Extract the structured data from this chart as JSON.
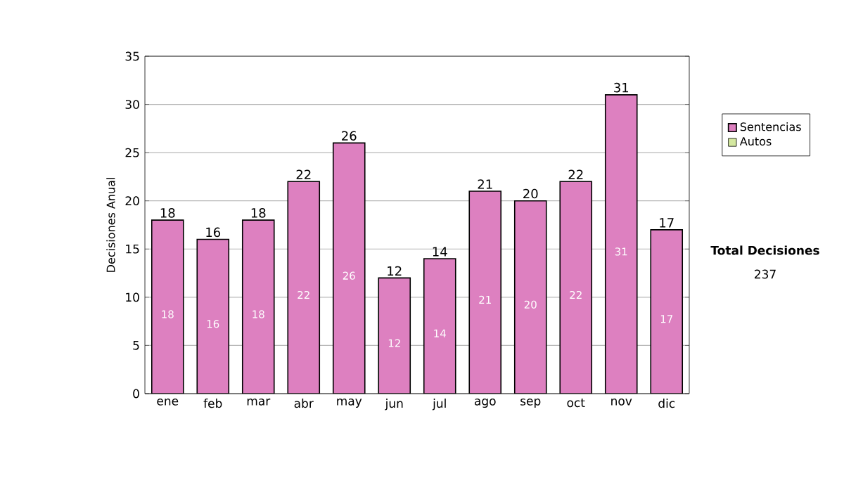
{
  "chart_data": {
    "type": "bar",
    "ylabel": "Decisiones Anual",
    "categories": [
      "ene",
      "feb",
      "mar",
      "abr",
      "may",
      "jun",
      "jul",
      "ago",
      "sep",
      "oct",
      "nov",
      "dic"
    ],
    "series": [
      {
        "name": "Sentencias",
        "color": "#dd80c0",
        "values": [
          18,
          16,
          18,
          22,
          26,
          12,
          14,
          21,
          20,
          22,
          31,
          17
        ]
      },
      {
        "name": "Autos",
        "color": "#d4e8a0",
        "values": [
          null,
          null,
          null,
          null,
          null,
          null,
          null,
          null,
          null,
          null,
          null,
          null
        ]
      }
    ],
    "stacked": true,
    "data_labels": true,
    "totals": [
      "18",
      "16",
      "18",
      "22",
      "26",
      "12",
      "14",
      "21",
      "20",
      "22",
      "31",
      "17"
    ],
    "ylim": [
      0,
      35
    ],
    "yticks": [
      0,
      5,
      10,
      15,
      20,
      25,
      30,
      35
    ],
    "grid": "y",
    "legend": "right",
    "annotations": [
      "**Total Decisiones**",
      "237"
    ]
  }
}
